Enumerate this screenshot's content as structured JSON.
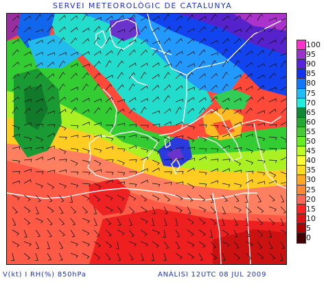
{
  "title": "SERVEI METEOROLÒGIC DE CATALUNYA",
  "footer": {
    "variables": "V(kt) I RH(%) 850hPa",
    "analysis": "ANÀLISI 12UTC 08 JUL 2009"
  },
  "legend": [
    {
      "label": "100",
      "color": "#ff33cc"
    },
    {
      "label": "95",
      "color": "#9933cc"
    },
    {
      "label": "90",
      "color": "#5522dd"
    },
    {
      "label": "85",
      "color": "#1133ee"
    },
    {
      "label": "80",
      "color": "#1177ff"
    },
    {
      "label": "75",
      "color": "#22bbff"
    },
    {
      "label": "70",
      "color": "#22eedd"
    },
    {
      "label": "65",
      "color": "#118833"
    },
    {
      "label": "60",
      "color": "#22aa33"
    },
    {
      "label": "55",
      "color": "#44cc33"
    },
    {
      "label": "50",
      "color": "#66ee22"
    },
    {
      "label": "45",
      "color": "#bbff22"
    },
    {
      "label": "40",
      "color": "#ffff33"
    },
    {
      "label": "35",
      "color": "#ffdd22"
    },
    {
      "label": "30",
      "color": "#ffaa22"
    },
    {
      "label": "25",
      "color": "#ff8833"
    },
    {
      "label": "20",
      "color": "#ff6655"
    },
    {
      "label": "15",
      "color": "#ff2222"
    },
    {
      "label": "10",
      "color": "#dd1111"
    },
    {
      "label": "5",
      "color": "#aa0000"
    },
    {
      "label": "0",
      "color": "#440000"
    }
  ]
}
